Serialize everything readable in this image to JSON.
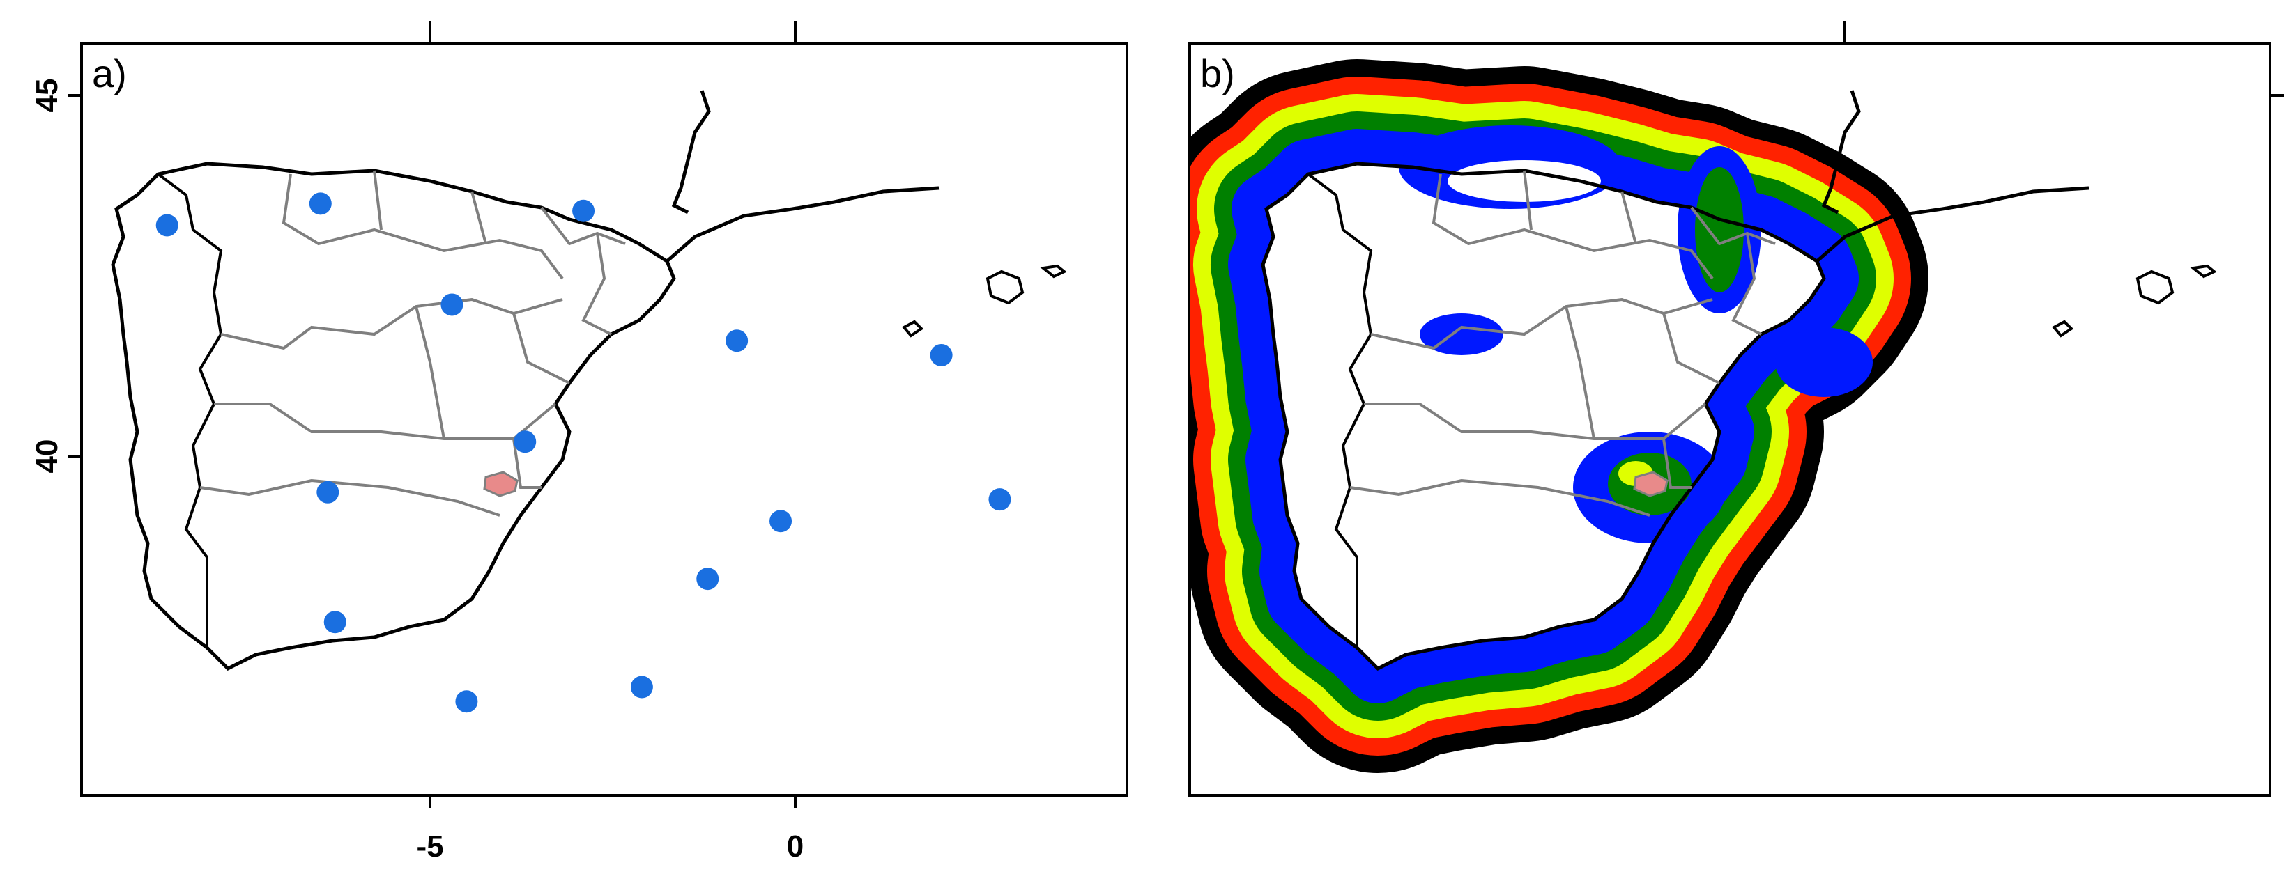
{
  "figure": {
    "panels": [
      {
        "label": "a)",
        "x_ticks": [
          "-5",
          "0"
        ],
        "y_ticks": [
          "45",
          "40"
        ],
        "stations": [
          {
            "lon": -8.6,
            "lat": 43.2
          },
          {
            "lon": -6.5,
            "lat": 43.5
          },
          {
            "lon": -2.9,
            "lat": 43.4
          },
          {
            "lon": -4.7,
            "lat": 42.1
          },
          {
            "lon": -0.8,
            "lat": 41.6
          },
          {
            "lon": 2.0,
            "lat": 41.4
          },
          {
            "lon": -3.7,
            "lat": 40.2
          },
          {
            "lon": -6.4,
            "lat": 39.5
          },
          {
            "lon": 2.8,
            "lat": 39.4
          },
          {
            "lon": -0.2,
            "lat": 39.1
          },
          {
            "lon": -1.2,
            "lat": 38.3
          },
          {
            "lon": -6.3,
            "lat": 37.7
          },
          {
            "lon": -2.1,
            "lat": 36.8
          },
          {
            "lon": -4.5,
            "lat": 36.6
          }
        ]
      },
      {
        "label": "b)",
        "x_ticks": [],
        "y_ticks": []
      }
    ],
    "colors": {
      "station": "#1a6fe0",
      "target_region": "#e88a8a",
      "coast": "#000000",
      "borders": "#7f7f7f",
      "band_black": "#000000",
      "band_red": "#ff2200",
      "band_yellow": "#dfff00",
      "band_green": "#008000",
      "band_blue": "#0018ff"
    }
  }
}
